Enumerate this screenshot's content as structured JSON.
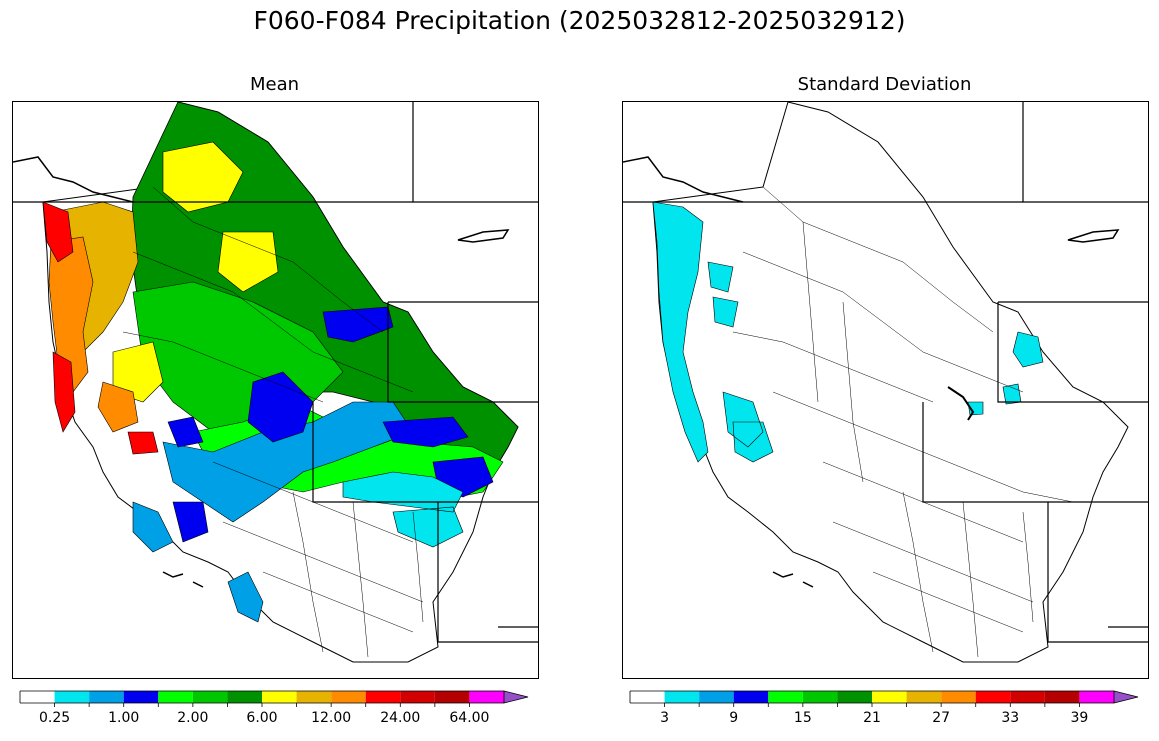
{
  "title": "F060-F084 Precipitation (2025032812-2025032912)",
  "panels": [
    {
      "title": "Mean",
      "colorbar": {
        "colors": [
          "#ffffff",
          "#00e5ee",
          "#00a0e6",
          "#0000f0",
          "#00ff00",
          "#00c800",
          "#009100",
          "#ffff00",
          "#e6b400",
          "#ff8c00",
          "#ff0000",
          "#d20000",
          "#b40000",
          "#ff00ff",
          "#9650c8"
        ],
        "tick_labels": [
          "0.25",
          "1.00",
          "2.00",
          "6.00",
          "12.00",
          "24.00",
          "64.00"
        ],
        "extend": "max"
      }
    },
    {
      "title": "Standard Deviation",
      "colorbar": {
        "colors": [
          "#ffffff",
          "#00e5ee",
          "#00a0e6",
          "#0000f0",
          "#00ff00",
          "#00c800",
          "#009100",
          "#ffff00",
          "#e6b400",
          "#ff8c00",
          "#ff0000",
          "#d20000",
          "#b40000",
          "#ff00ff",
          "#9650c8"
        ],
        "tick_labels": [
          "3",
          "9",
          "15",
          "21",
          "27",
          "33",
          "39"
        ],
        "extend": "max"
      }
    }
  ]
}
